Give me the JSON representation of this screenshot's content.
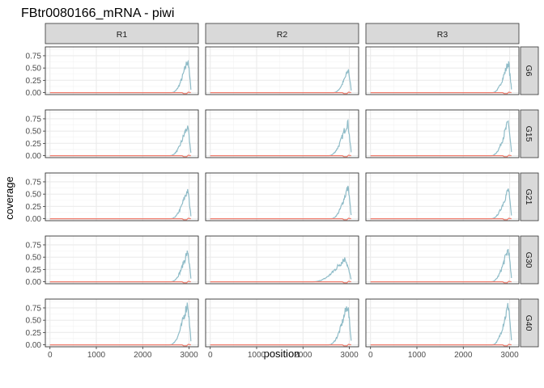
{
  "chart_data": {
    "type": "line",
    "title": "FBtr0080166_mRNA - piwi",
    "xlabel": "position",
    "ylabel": "coverage",
    "xlim": [
      -100,
      3200
    ],
    "ylim": [
      -0.04,
      0.93
    ],
    "x_ticks": [
      0,
      1000,
      2000,
      3000
    ],
    "x_tick_labels": [
      "0",
      "1000",
      "2000",
      "3000"
    ],
    "y_ticks": [
      0,
      0.25,
      0.5,
      0.75
    ],
    "y_tick_labels": [
      "0.00",
      "0.25",
      "0.50",
      "0.75"
    ],
    "columns": [
      "R1",
      "R2",
      "R3"
    ],
    "rows": [
      "G6",
      "G15",
      "G21",
      "G30",
      "G40"
    ],
    "grid": true,
    "legend": "none",
    "colors": {
      "series_blue": "#8fbcc8",
      "series_red": "#f07b6b",
      "strip_bg": "#d9d9d9",
      "panel_border": "#333333",
      "grid": "#ebebeb"
    },
    "panels": [
      {
        "row": "G6",
        "col": "R1",
        "peak": 0.7,
        "start": 2620,
        "end": 3040
      },
      {
        "row": "G6",
        "col": "R2",
        "peak": 0.48,
        "start": 2650,
        "end": 3040
      },
      {
        "row": "G6",
        "col": "R3",
        "peak": 0.65,
        "start": 2620,
        "end": 3040
      },
      {
        "row": "G15",
        "col": "R1",
        "peak": 0.63,
        "start": 2580,
        "end": 3040
      },
      {
        "row": "G15",
        "col": "R2",
        "peak": 0.72,
        "start": 2550,
        "end": 3040
      },
      {
        "row": "G15",
        "col": "R3",
        "peak": 0.72,
        "start": 2600,
        "end": 3040
      },
      {
        "row": "G21",
        "col": "R1",
        "peak": 0.62,
        "start": 2600,
        "end": 3040
      },
      {
        "row": "G21",
        "col": "R2",
        "peak": 0.67,
        "start": 2600,
        "end": 3040
      },
      {
        "row": "G21",
        "col": "R3",
        "peak": 0.62,
        "start": 2600,
        "end": 3040
      },
      {
        "row": "G30",
        "col": "R1",
        "peak": 0.65,
        "start": 2600,
        "end": 3040
      },
      {
        "row": "G30",
        "col": "R2",
        "peak": 0.5,
        "start": 2200,
        "end": 3040
      },
      {
        "row": "G30",
        "col": "R3",
        "peak": 0.7,
        "start": 2600,
        "end": 3040
      },
      {
        "row": "G40",
        "col": "R1",
        "peak": 0.88,
        "start": 2580,
        "end": 3040
      },
      {
        "row": "G40",
        "col": "R2",
        "peak": 0.85,
        "start": 2550,
        "end": 3040
      },
      {
        "row": "G40",
        "col": "R3",
        "peak": 0.85,
        "start": 2620,
        "end": 3040
      }
    ]
  }
}
